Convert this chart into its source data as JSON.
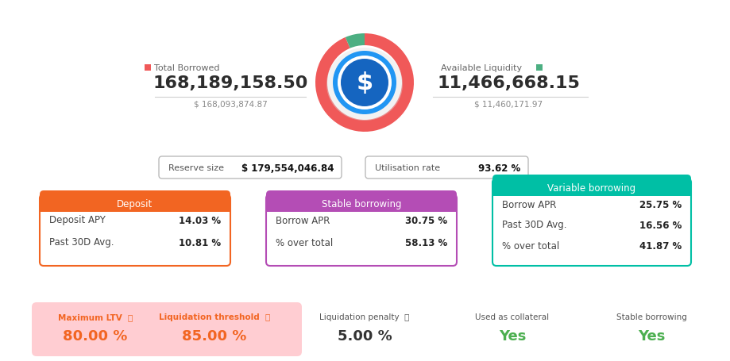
{
  "bg_color": "#ffffff",
  "total_borrowed_label": "Total Borrowed",
  "total_borrowed_value": "168,189,158.50",
  "total_borrowed_usd": "$ 168,093,874.87",
  "available_liquidity_label": "Available Liquidity",
  "available_liquidity_value": "11,466,668.15",
  "available_liquidity_usd": "$ 11,460,171.97",
  "reserve_size_label": "Reserve size",
  "reserve_size_value": "$ 179,554,046.84",
  "utilisation_rate_label": "Utilisation rate",
  "utilisation_rate_value": "93.62 %",
  "donut_borrowed_pct": 93.62,
  "donut_available_pct": 6.38,
  "donut_red": "#f05959",
  "donut_green": "#4caf82",
  "coin_blue_outer": "#2196f3",
  "coin_blue_inner": "#1565c0",
  "coin_white_ring": "#ffffff",
  "deposit_header": "Deposit",
  "deposit_header_color": "#f26522",
  "deposit_row1_label": "Deposit APY",
  "deposit_row1_value": "14.03 %",
  "deposit_row2_label": "Past 30D Avg.",
  "deposit_row2_value": "10.81 %",
  "deposit_border_color": "#f26522",
  "stable_header": "Stable borrowing",
  "stable_header_color": "#b44db5",
  "stable_row1_label": "Borrow APR",
  "stable_row1_value": "30.75 %",
  "stable_row2_label": "% over total",
  "stable_row2_value": "58.13 %",
  "stable_border_color": "#b44db5",
  "variable_header": "Variable borrowing",
  "variable_header_color": "#00bfa5",
  "variable_row1_label": "Borrow APR",
  "variable_row1_value": "25.75 %",
  "variable_row2_label": "Past 30D Avg.",
  "variable_row2_value": "16.56 %",
  "variable_row3_label": "% over total",
  "variable_row3_value": "41.87 %",
  "variable_border_color": "#00bfa5",
  "max_ltv_label": "Maximum LTV",
  "max_ltv_value": "80.00 %",
  "max_ltv_color": "#f26522",
  "liq_threshold_label": "Liquidation threshold",
  "liq_threshold_value": "85.00 %",
  "liq_threshold_color": "#f26522",
  "liq_penalty_label": "Liquidation penalty",
  "liq_penalty_value": "5.00 %",
  "collateral_label": "Used as collateral",
  "collateral_value": "Yes",
  "collateral_color": "#4caf50",
  "stable_borrow_bottom_label": "Stable borrowing",
  "stable_borrow_bottom_value": "Yes",
  "stable_borrow_color": "#4caf50",
  "bottom_bg_color": "#ffcdd2"
}
